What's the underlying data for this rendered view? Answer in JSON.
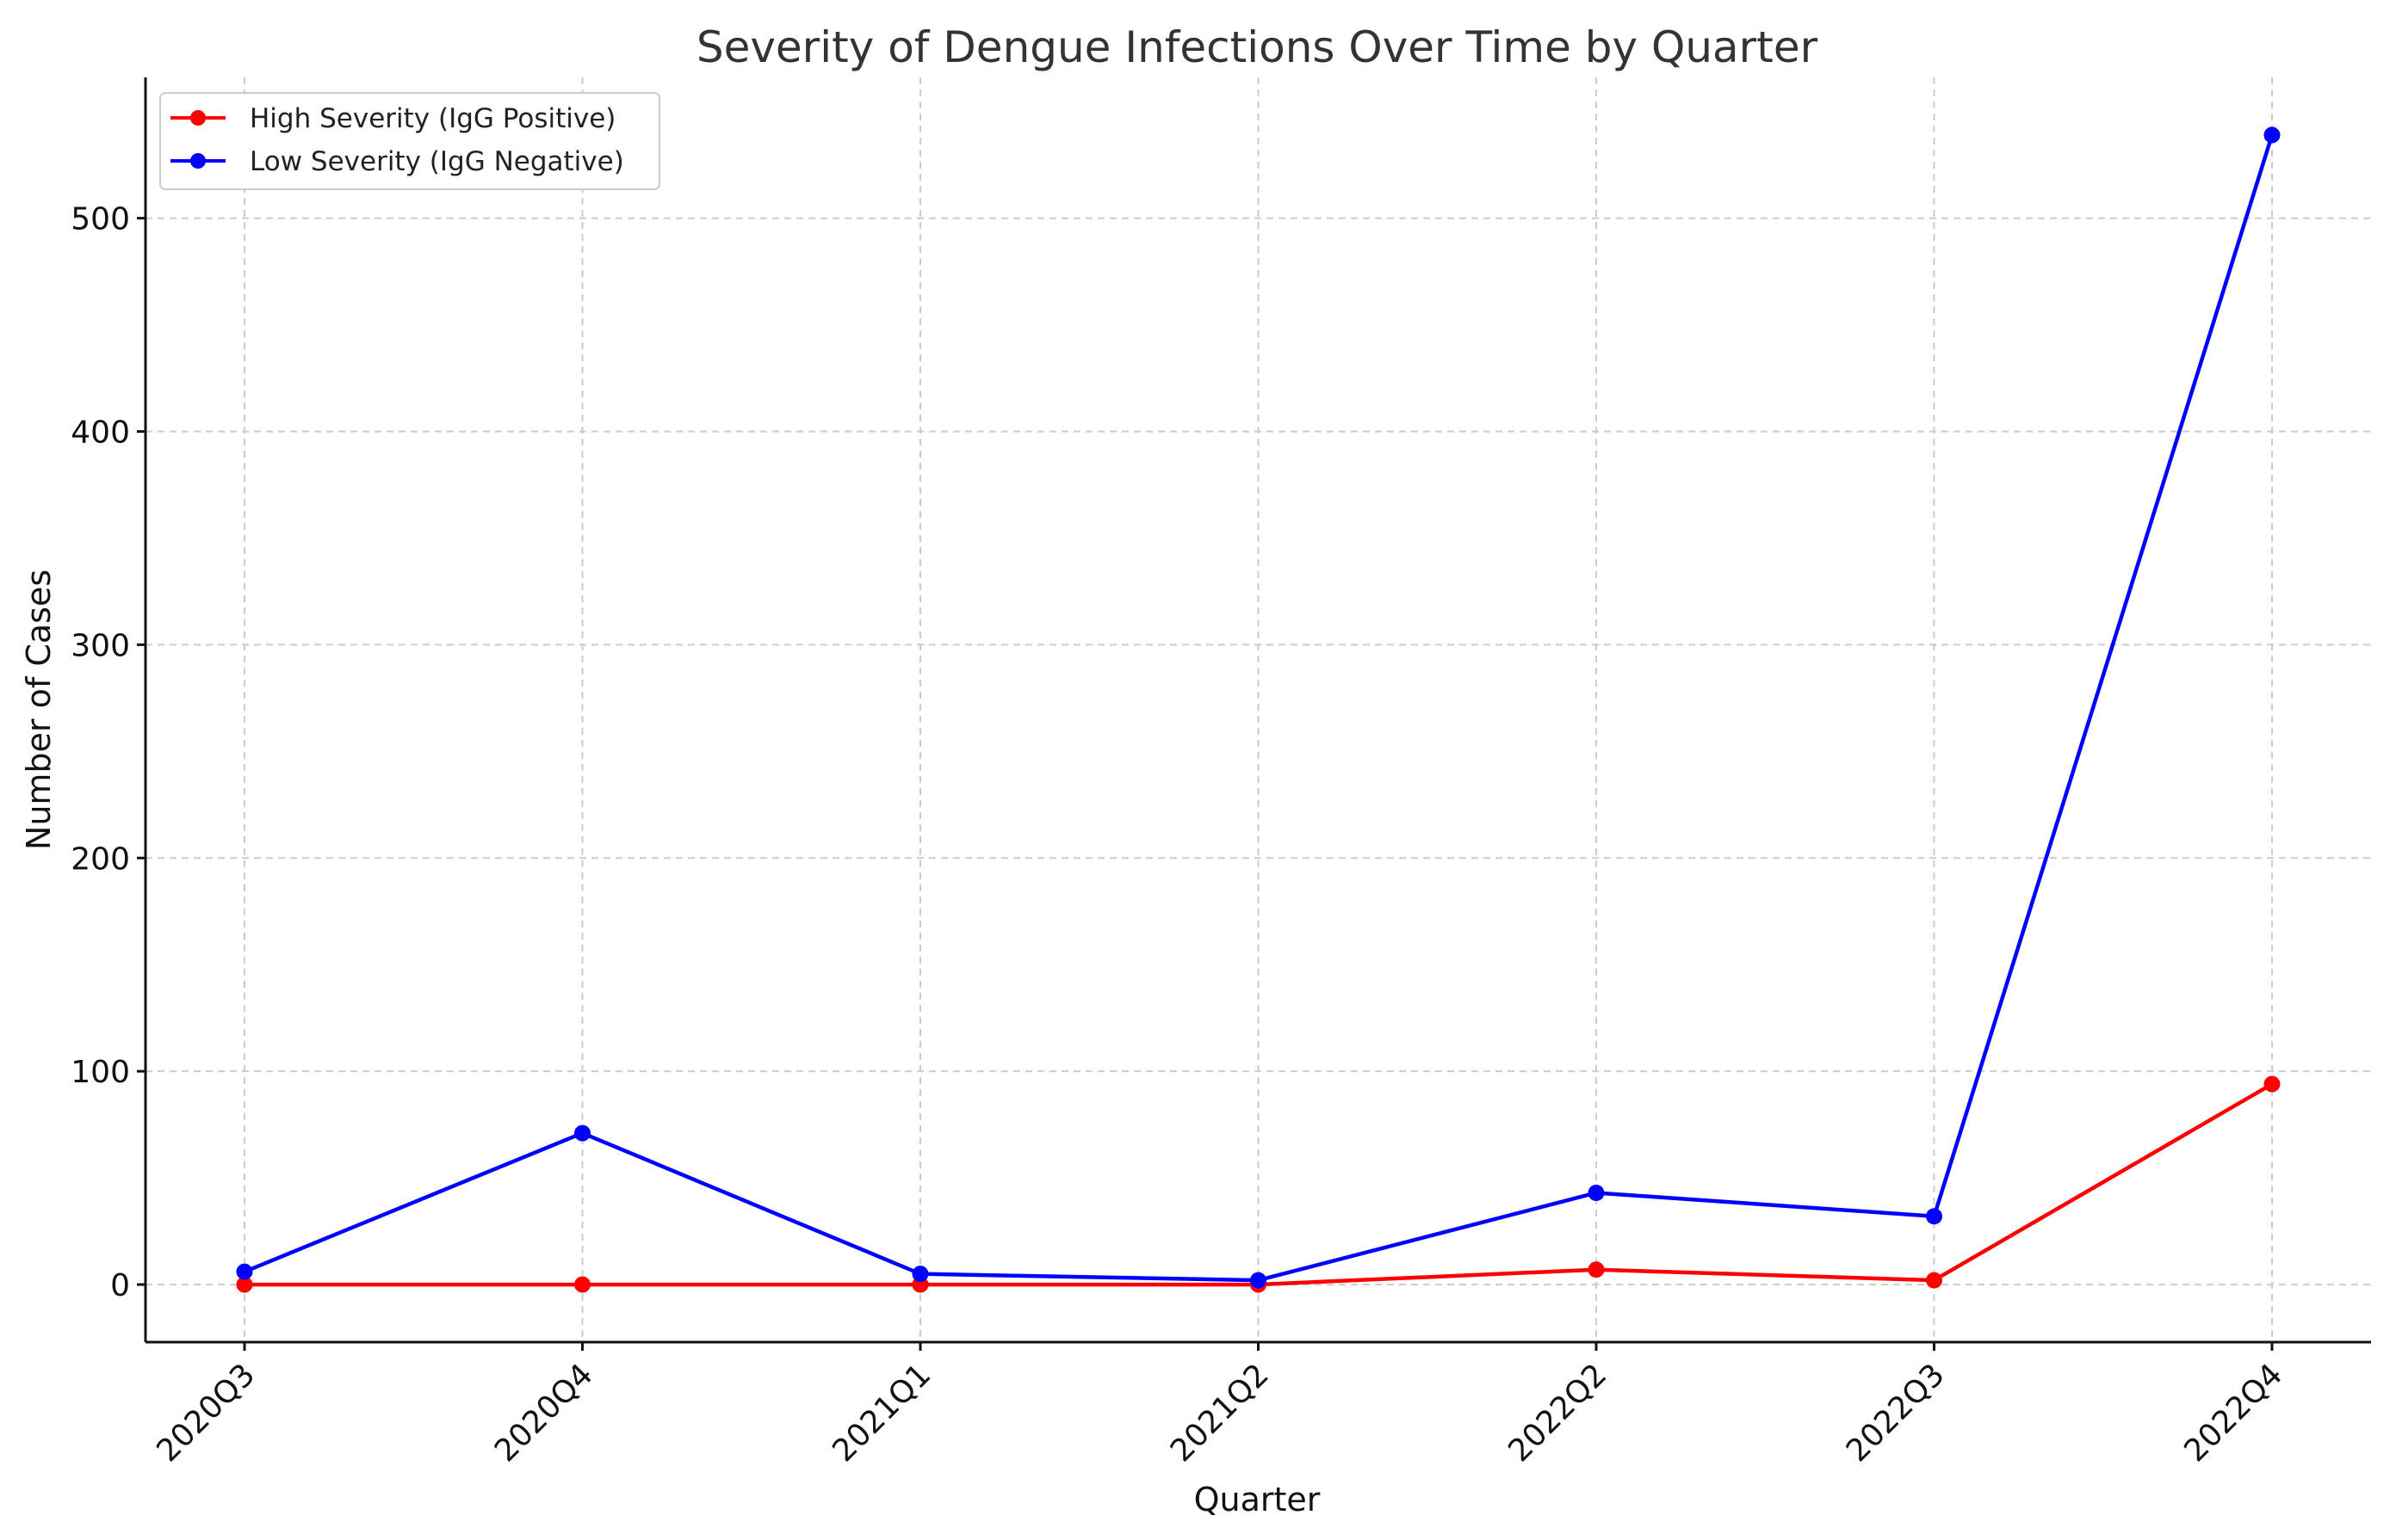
{
  "chart_data": {
    "type": "line",
    "title": "Severity of Dengue Infections Over Time by Quarter",
    "xlabel": "Quarter",
    "ylabel": "Number of Cases",
    "categories": [
      "2020Q3",
      "2020Q4",
      "2021Q1",
      "2021Q2",
      "2022Q2",
      "2022Q3",
      "2022Q4"
    ],
    "ylim": [
      -27,
      566
    ],
    "yticks": [
      0,
      100,
      200,
      300,
      400,
      500
    ],
    "grid": true,
    "legend_position": "top-left",
    "series": [
      {
        "name": "High Severity (IgG Positive)",
        "color": "#ff0000",
        "values": [
          0,
          0,
          0,
          0,
          7,
          2,
          94
        ]
      },
      {
        "name": "Low Severity (IgG Negative)",
        "color": "#0000ff",
        "values": [
          6,
          71,
          5,
          2,
          43,
          32,
          539
        ]
      }
    ]
  }
}
